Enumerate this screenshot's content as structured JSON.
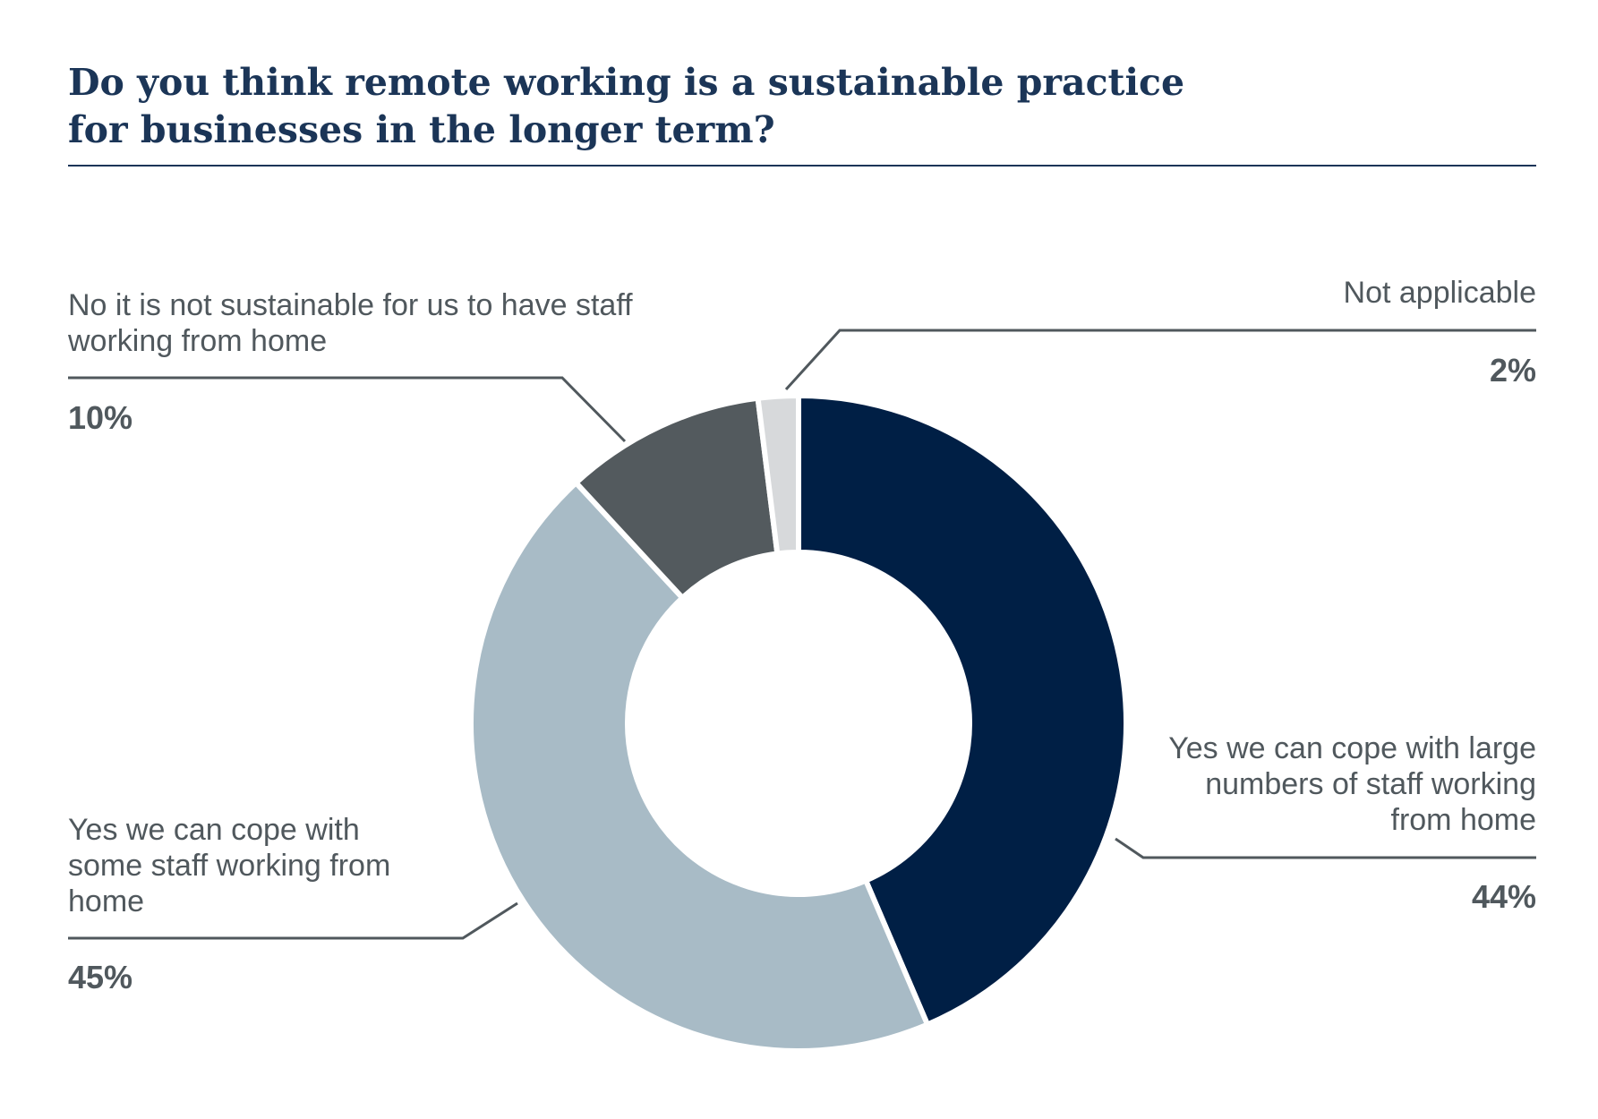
{
  "chart_data": {
    "type": "pie",
    "title": "Do you think remote working is a sustainable practice for businesses in the longer term?",
    "categories": [
      "Yes we can cope with large numbers of staff working from home",
      "Yes we can cope with some staff working from home",
      "No it is not sustainable for us to have staff working from home",
      "Not applicable"
    ],
    "values": [
      44,
      45,
      10,
      2
    ],
    "value_labels": [
      "44%",
      "45%",
      "10%",
      "2%"
    ],
    "colors": [
      "#001f45",
      "#a8bbc6",
      "#535a5e",
      "#d7d9db"
    ],
    "donut": true
  },
  "labels": {
    "large": "Yes we can cope with large numbers of staff working from home",
    "some": "Yes we can cope with some staff working from home",
    "no": "No it is not sustainable for us to have staff working from home",
    "na": "Not applicable"
  },
  "percents": {
    "large": "44%",
    "some": "45%",
    "no": "10%",
    "na": "2%"
  },
  "colors": {
    "title": "#1b3557",
    "label_text": "#50585d",
    "leader_line": "#50585d"
  }
}
